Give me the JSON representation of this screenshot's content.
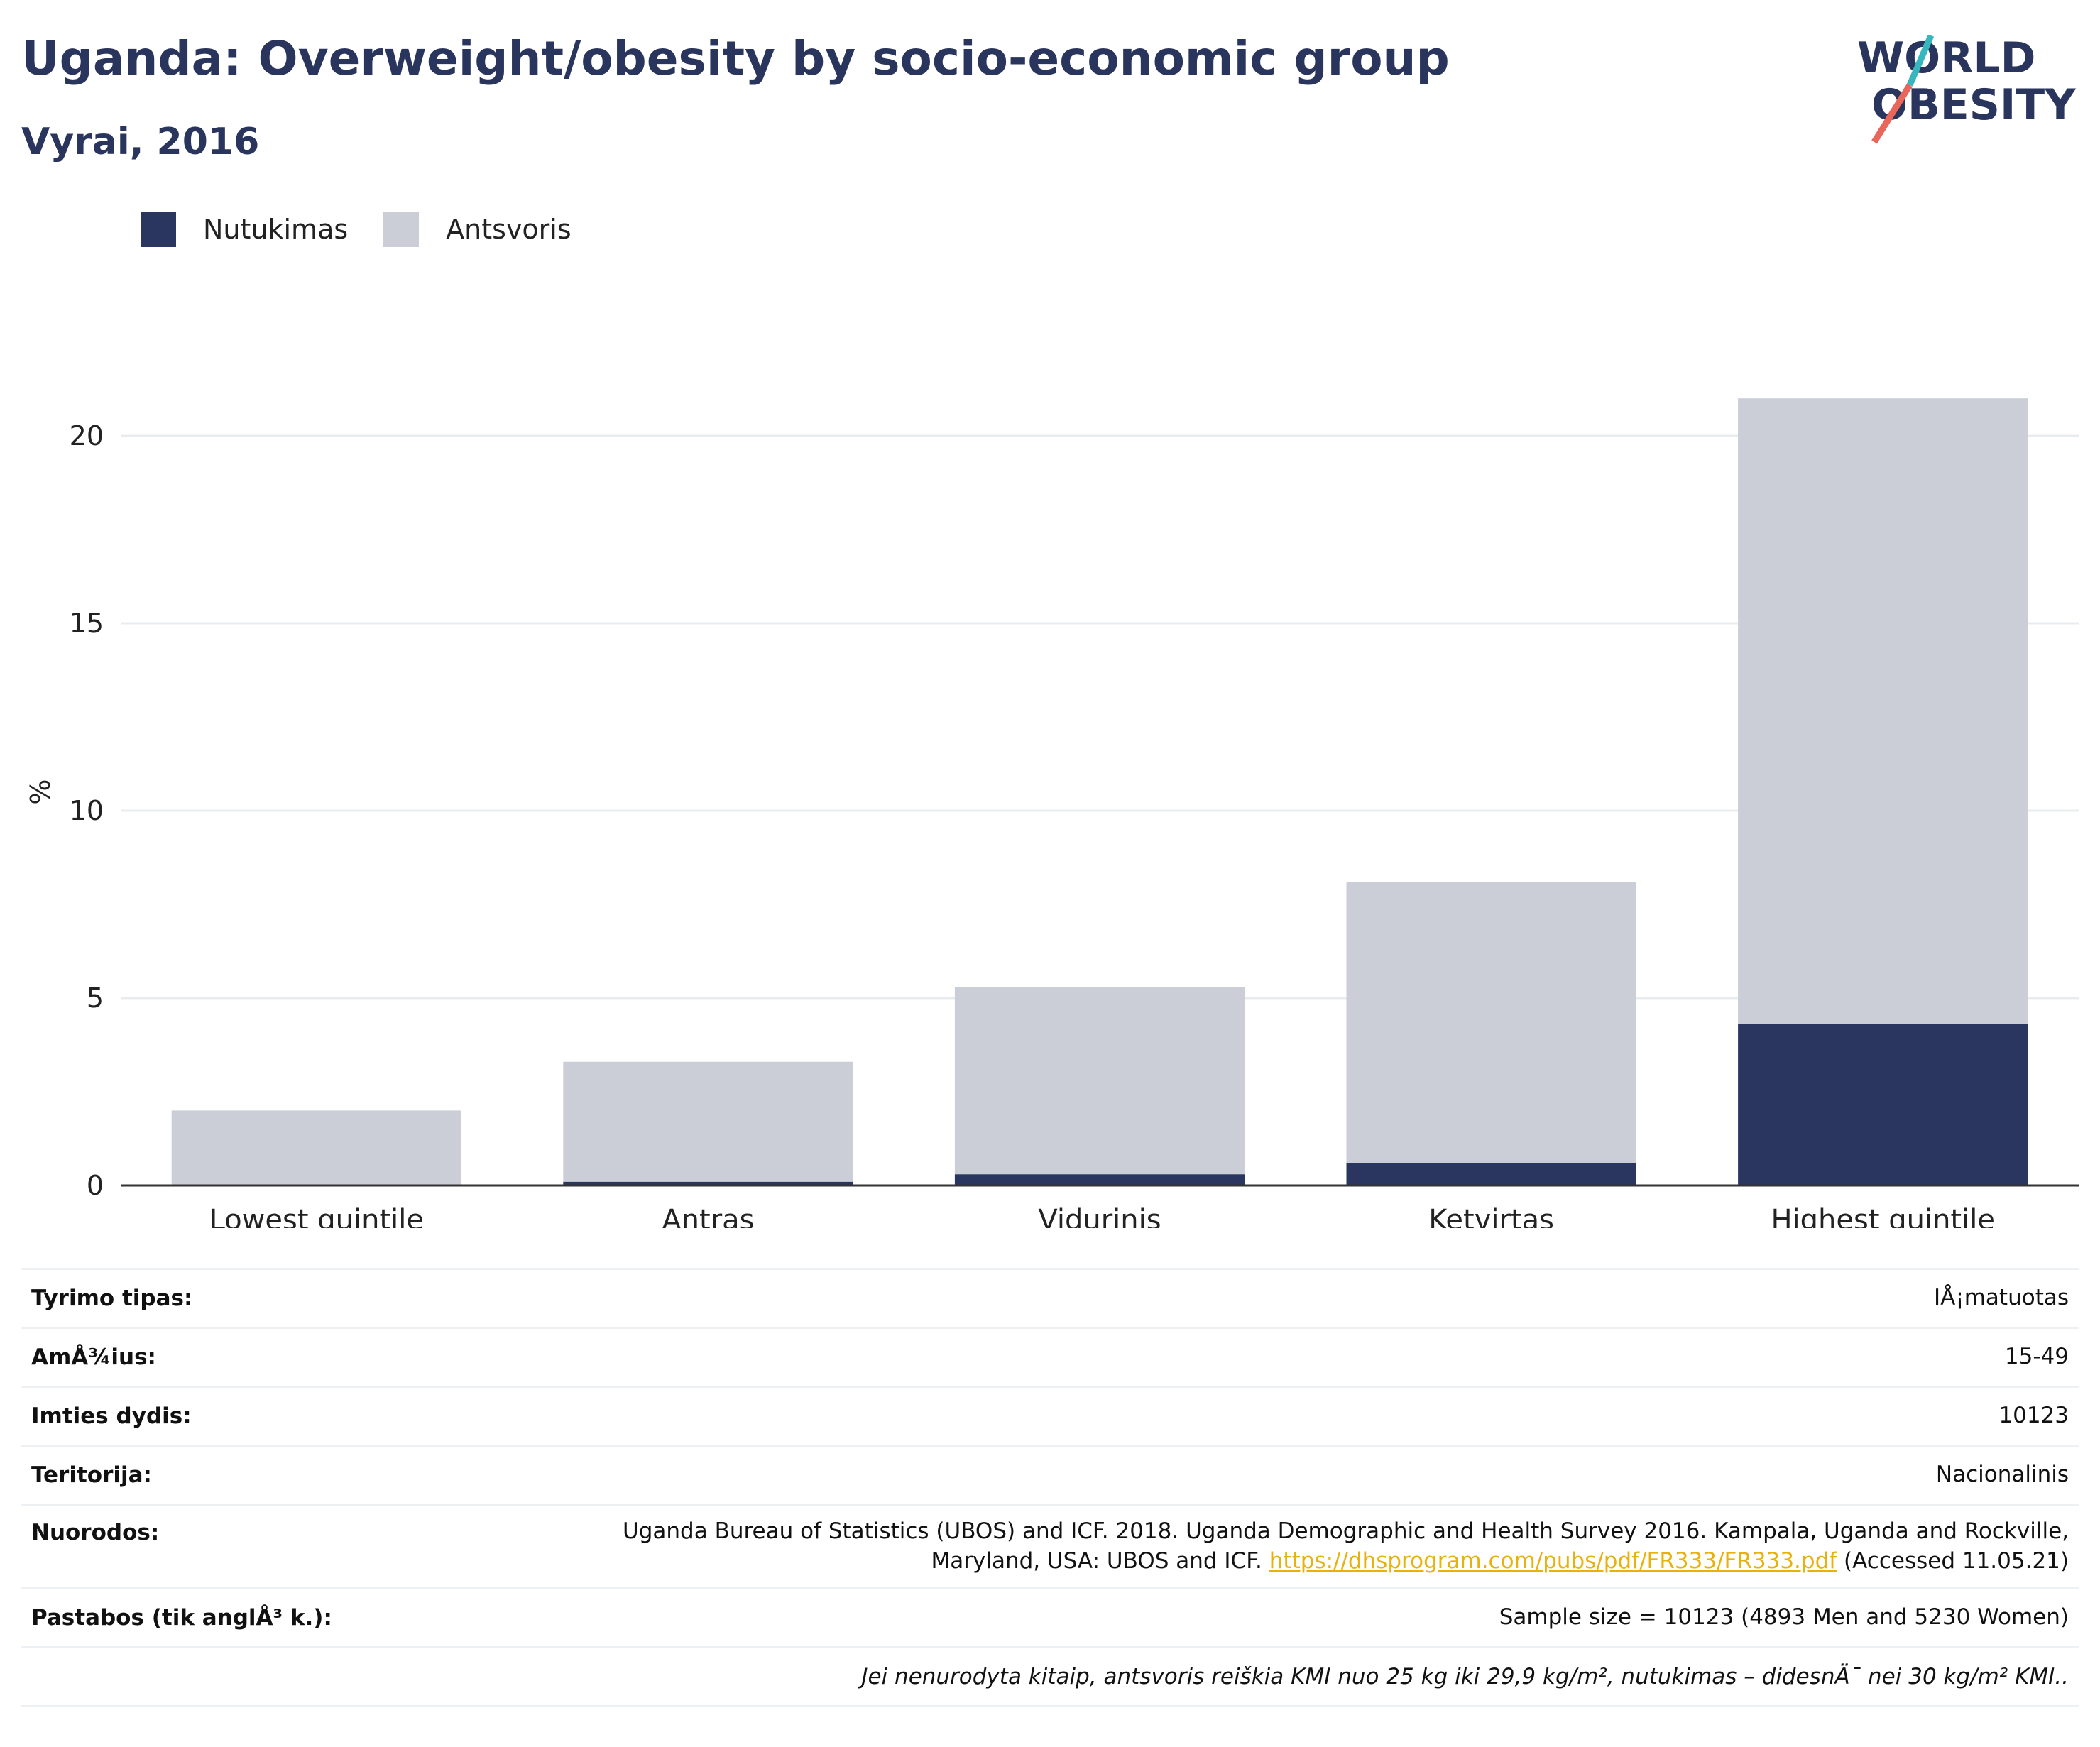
{
  "title": "Uganda: Overweight/obesity by socio-economic group",
  "subtitle": "Vyrai, 2016",
  "logo": {
    "line1": "WORLD",
    "line2": "OBESITY",
    "colors": [
      "#2a355e",
      "#e8665a",
      "#37b6bd"
    ]
  },
  "legend": [
    {
      "label": "Nutukimas",
      "color": "#2a365f"
    },
    {
      "label": "Antsvoris",
      "color": "#cbcdd7"
    }
  ],
  "chart_data": {
    "type": "bar",
    "stacked": true,
    "categories": [
      "Lowest quintile",
      "Antras",
      "Vidurinis",
      "Ketvirtas",
      "Highest quintile"
    ],
    "series": [
      {
        "name": "Nutukimas",
        "color": "#2a365f",
        "values": [
          0.0,
          0.1,
          0.3,
          0.6,
          4.3
        ]
      },
      {
        "name": "Antsvoris",
        "color": "#cbcdd7",
        "values": [
          2.0,
          3.2,
          5.0,
          7.5,
          16.7
        ]
      }
    ],
    "ylabel": "%",
    "yticks": [
      0,
      5,
      10,
      15,
      20
    ],
    "ylim": [
      0,
      21
    ],
    "grid": true
  },
  "info": {
    "study_type": {
      "label": "Tyrimo tipas:",
      "value": "IÅ¡matuotas"
    },
    "age": {
      "label": "AmÅ¾ius:",
      "value": "15-49"
    },
    "sample": {
      "label": "Imties dydis:",
      "value": "10123"
    },
    "territory": {
      "label": "Teritorija:",
      "value": "Nacionalinis"
    },
    "references": {
      "label": "Nuorodos:",
      "text_line1": "Uganda Bureau of Statistics (UBOS) and ICF. 2018. Uganda Demographic and Health Survey 2016. Kampala, Uganda and Rockville,",
      "text_line2": "Maryland, USA: UBOS and ICF.",
      "link": "https://dhsprogram.com/pubs/pdf/FR333/FR333.pdf",
      "accessed": "(Accessed 11.05.21)"
    },
    "notes": {
      "label": "Pastabos (tik anglÅ³ k.):",
      "value": "Sample size = 10123 (4893 Men and 5230 Women)"
    },
    "footnote": "Jei nenurodyta kitaip, antsvoris reiškia KMI nuo 25 kg iki 29,9 kg/m², nutukimas – didesnÄ¯ nei 30 kg/m² KMI.."
  }
}
